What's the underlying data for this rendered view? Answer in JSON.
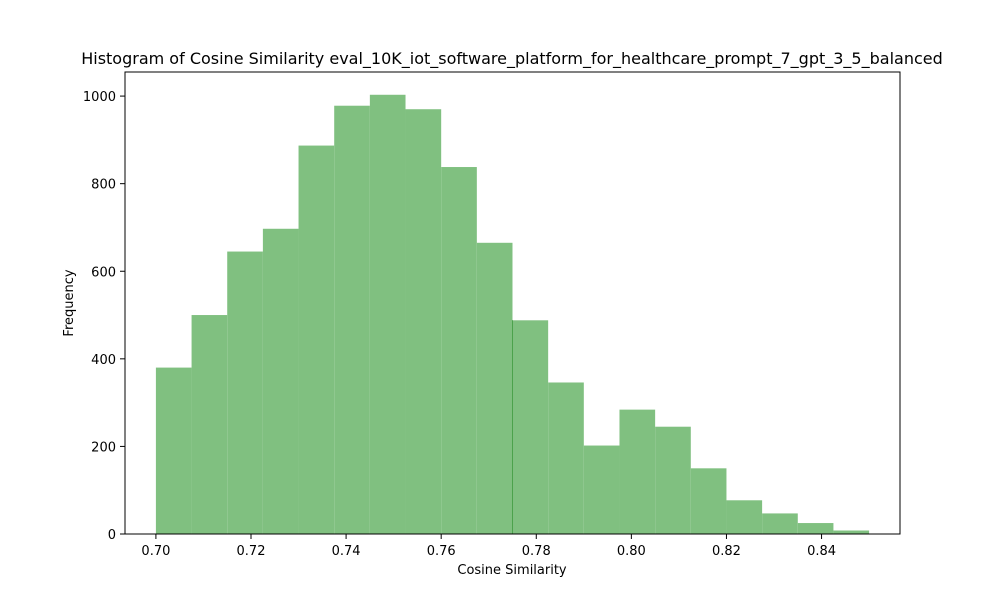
{
  "chart_data": {
    "type": "histogram",
    "title": "Histogram of Cosine Similarity eval_10K_iot_software_platform_for_healthcare_prompt_7_gpt_3_5_balanced",
    "xlabel": "Cosine Similarity",
    "ylabel": "Frequency",
    "xlim": [
      0.6935,
      0.8565
    ],
    "ylim": [
      0,
      1055
    ],
    "x_ticks": [
      0.7,
      0.72,
      0.74,
      0.76,
      0.78,
      0.8,
      0.82,
      0.84
    ],
    "x_tick_labels": [
      "0.70",
      "0.72",
      "0.74",
      "0.76",
      "0.78",
      "0.80",
      "0.82",
      "0.84"
    ],
    "y_ticks": [
      0,
      200,
      400,
      600,
      800,
      1000
    ],
    "y_tick_labels": [
      "0",
      "200",
      "400",
      "600",
      "800",
      "1000"
    ],
    "bin_edges": [
      0.7,
      0.7075,
      0.715,
      0.7225,
      0.73,
      0.7375,
      0.745,
      0.7525,
      0.76,
      0.7675,
      0.775,
      0.7825,
      0.79,
      0.7975,
      0.805,
      0.8125,
      0.82,
      0.8275,
      0.835,
      0.8425,
      0.85
    ],
    "values": [
      380,
      500,
      645,
      697,
      887,
      978,
      1003,
      970,
      838,
      665,
      488,
      346,
      202,
      284,
      245,
      150,
      77,
      47,
      25,
      8
    ],
    "bar_color": "#80c080",
    "edge_color": "#4ca24c",
    "grid": false,
    "legend": "none"
  }
}
